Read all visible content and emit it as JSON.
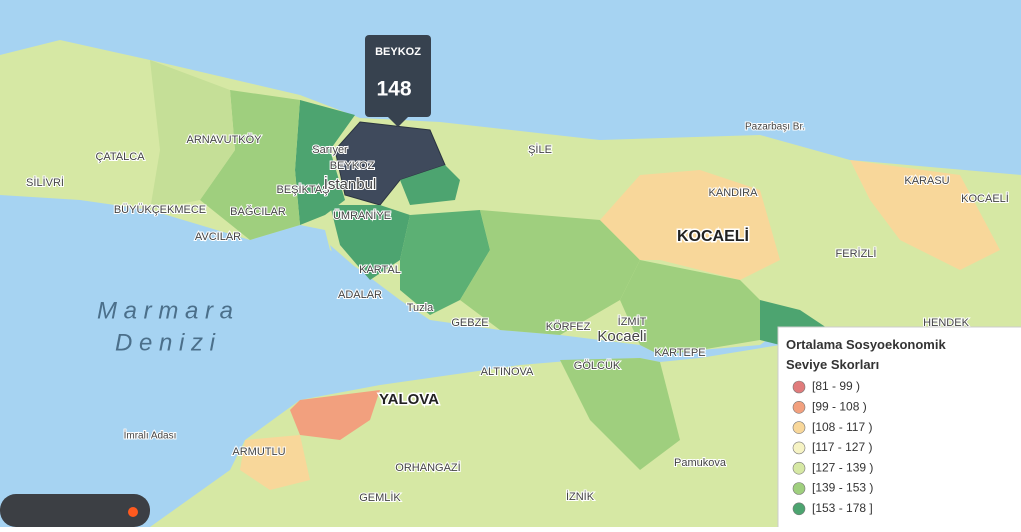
{
  "tooltip": {
    "name": "BEYKOZ",
    "value": 148
  },
  "legend": {
    "title": "Ortalama Sosyoekonomik Seviye Skorları",
    "items": [
      {
        "label": "[81 - 99 )",
        "color": "#e07b7b"
      },
      {
        "label": "[99 - 108 )",
        "color": "#f2a07e"
      },
      {
        "label": "[108 - 117 )",
        "color": "#f8d79a"
      },
      {
        "label": "[117 - 127 )",
        "color": "#f6f3c4"
      },
      {
        "label": "[127 - 139 )",
        "color": "#d6e8a4"
      },
      {
        "label": "[139 - 153 )",
        "color": "#9fcf7e"
      },
      {
        "label": "[153 - 178 ]",
        "color": "#4da470"
      }
    ]
  },
  "sea_labels": [
    "M a r m a r a",
    "D e n i z i"
  ],
  "places": [
    "ÇATALCA",
    "ARNAVUTKÖY",
    "SİLİVRİ",
    "BÜYÜKÇEKMECE",
    "BAĞCILAR",
    "AVCILAR",
    "BEŞİKTAŞ",
    "BEYKOZ",
    "Sarıyer",
    "İstanbul",
    "ÜMRANİYE",
    "KARTAL",
    "ADALAR",
    "Tuzla",
    "GEBZE",
    "ŞİLE",
    "KANDIRA",
    "Pazarbaşı Br.",
    "KOCAELİ",
    "FERİZLİ",
    "KARASU",
    "KOCAELİ",
    "HENDEK",
    "KÖRFEZ",
    "İZMİT",
    "Kocaeli",
    "KARTEPE",
    "GÖLCÜK",
    "ALTINOVA",
    "YALOVA",
    "ARMUTLU",
    "ORHANGAZİ",
    "GEMLİK",
    "İZNİK",
    "İmralı Adası",
    "Pamukova"
  ]
}
